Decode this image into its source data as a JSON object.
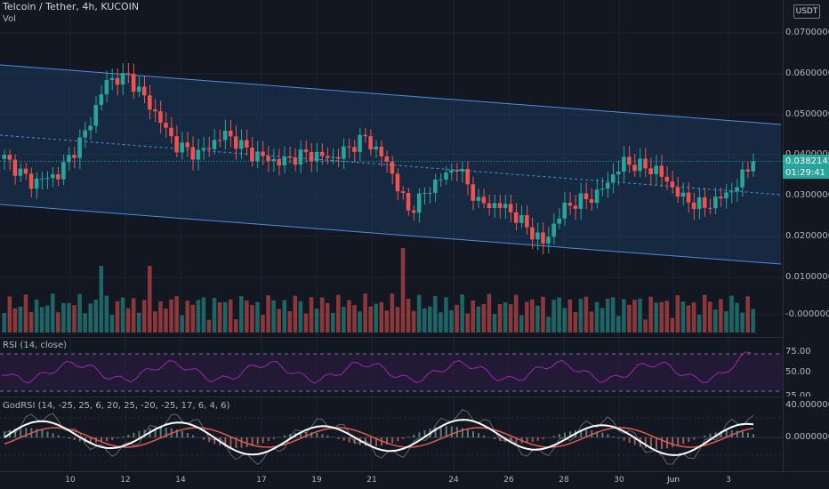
{
  "header": {
    "symbol_line": "Telcoin / Tether, 4h, KUCOIN",
    "volume_label": "Vol",
    "currency_button": "USDT"
  },
  "price_axis": {
    "labels": [
      "0.07000000",
      "0.06000000",
      "0.05000000",
      "0.04000000",
      "0.03000000",
      "0.02000000",
      "0.01000000",
      "-0.00000000"
    ],
    "current_price": "0.03821420",
    "countdown": "01:29:41",
    "current_color": "#26a69a"
  },
  "rsi_pane": {
    "label": "RSI (14, close)",
    "axis_labels": [
      "75.00",
      "50.00",
      "25.00"
    ]
  },
  "godrsi_pane": {
    "label": "GodRSI (14, -25, 25, 6, 20, 25, -20, -25, 17, 6, 4, 6)",
    "axis_labels": [
      "40.00000000",
      "0.00000000"
    ]
  },
  "time_axis": {
    "labels": [
      "10",
      "12",
      "14",
      "17",
      "19",
      "21",
      "24",
      "26",
      "28",
      "30",
      "Jun",
      "3"
    ]
  },
  "colors": {
    "up": "#26a69a",
    "down": "#ef5350",
    "channel_line": "#4a8ee0",
    "rsi_line": "#9c27b0",
    "god_line": "#ffffff",
    "god_signal": "#e05a4e"
  }
}
